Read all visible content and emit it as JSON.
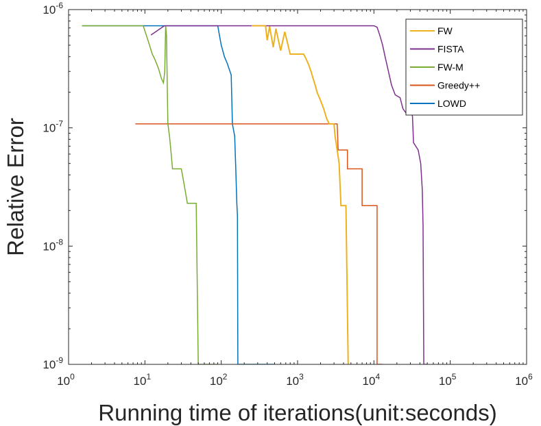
{
  "chart_data": {
    "type": "line",
    "title": "",
    "xlabel": "Running time of iterations(unit:seconds)",
    "ylabel": "Relative Error",
    "xscale": "log",
    "yscale": "log",
    "xlim": [
      1,
      1000000
    ],
    "ylim": [
      1e-09,
      1e-06
    ],
    "x_ticks": [
      {
        "base": "10",
        "exp": "0",
        "value": 1
      },
      {
        "base": "10",
        "exp": "1",
        "value": 10
      },
      {
        "base": "10",
        "exp": "2",
        "value": 100
      },
      {
        "base": "10",
        "exp": "3",
        "value": 1000
      },
      {
        "base": "10",
        "exp": "4",
        "value": 10000
      },
      {
        "base": "10",
        "exp": "5",
        "value": 100000
      },
      {
        "base": "10",
        "exp": "6",
        "value": 1000000
      }
    ],
    "y_ticks": [
      {
        "base": "10",
        "exp": "-9",
        "value": 1e-09
      },
      {
        "base": "10",
        "exp": "-8",
        "value": 1e-08
      },
      {
        "base": "10",
        "exp": "-7",
        "value": 1e-07
      },
      {
        "base": "10",
        "exp": "-6",
        "value": 1e-06
      }
    ],
    "legend_position": "top-right",
    "series": [
      {
        "name": "FW",
        "color": "#EDB120",
        "line_width": 2,
        "points": [
          [
            250,
            7.3e-07
          ],
          [
            380,
            7.3e-07
          ],
          [
            400,
            5.5e-07
          ],
          [
            430,
            7.2e-07
          ],
          [
            480,
            4.8e-07
          ],
          [
            520,
            6.9e-07
          ],
          [
            600,
            4.5e-07
          ],
          [
            680,
            6.5e-07
          ],
          [
            800,
            4.2e-07
          ],
          [
            900,
            4.2e-07
          ],
          [
            1000,
            4.2e-07
          ],
          [
            1200,
            4.2e-07
          ],
          [
            1300,
            3.8e-07
          ],
          [
            1400,
            3.4e-07
          ],
          [
            1500,
            3e-07
          ],
          [
            1600,
            2.6e-07
          ],
          [
            1700,
            2.3e-07
          ],
          [
            1800,
            2e-07
          ],
          [
            2000,
            1.7e-07
          ],
          [
            2200,
            1.45e-07
          ],
          [
            2400,
            1.2e-07
          ],
          [
            2600,
            1.08e-07
          ],
          [
            3000,
            1.08e-07
          ],
          [
            3100,
            8.5e-08
          ],
          [
            3300,
            6.5e-08
          ],
          [
            3500,
            5e-08
          ],
          [
            3700,
            2.2e-08
          ],
          [
            4000,
            2.2e-08
          ],
          [
            4300,
            2.2e-08
          ],
          [
            4600,
            1e-09
          ]
        ]
      },
      {
        "name": "FISTA",
        "color": "#7E2F8E",
        "line_width": 1.5,
        "points": [
          [
            12,
            6.1e-07
          ],
          [
            18,
            7.3e-07
          ],
          [
            80,
            7.3e-07
          ],
          [
            200,
            7.3e-07
          ],
          [
            1000,
            7.3e-07
          ],
          [
            8000,
            7.3e-07
          ],
          [
            10000,
            7.3e-07
          ],
          [
            11000,
            7.1e-07
          ],
          [
            12000,
            6e-07
          ],
          [
            13000,
            5e-07
          ],
          [
            14000,
            4e-07
          ],
          [
            15500,
            3e-07
          ],
          [
            17000,
            2.3e-07
          ],
          [
            19000,
            1.9e-07
          ],
          [
            22000,
            1.8e-07
          ],
          [
            24000,
            1.45e-07
          ],
          [
            26000,
            1.35e-07
          ],
          [
            28000,
            1.5e-07
          ],
          [
            30000,
            1.45e-07
          ],
          [
            32000,
            1.25e-07
          ],
          [
            33000,
            7.5e-08
          ],
          [
            38000,
            6.5e-08
          ],
          [
            41000,
            5e-08
          ],
          [
            43000,
            3e-08
          ],
          [
            44000,
            1.5e-08
          ],
          [
            45000,
            1e-09
          ],
          [
            50000,
            1e-09
          ]
        ]
      },
      {
        "name": "FW-M",
        "color": "#77AC30",
        "line_width": 1.5,
        "points": [
          [
            1.5,
            7.3e-07
          ],
          [
            9.5,
            7.3e-07
          ],
          [
            10.5,
            6e-07
          ],
          [
            11.5,
            5e-07
          ],
          [
            12.5,
            4.2e-07
          ],
          [
            13.5,
            3.8e-07
          ],
          [
            15,
            3.2e-07
          ],
          [
            16.5,
            2.6e-07
          ],
          [
            17.5,
            2.4e-07
          ],
          [
            18.2,
            3e-07
          ],
          [
            18.7,
            7.3e-07
          ],
          [
            19.2,
            6e-07
          ],
          [
            19.6,
            2.4e-07
          ],
          [
            20,
            1.08e-07
          ],
          [
            21,
            8.5e-08
          ],
          [
            22,
            6.2e-08
          ],
          [
            23,
            4.5e-08
          ],
          [
            27,
            4.5e-08
          ],
          [
            30,
            4.5e-08
          ],
          [
            33,
            3.2e-08
          ],
          [
            36,
            2.3e-08
          ],
          [
            47,
            2.3e-08
          ],
          [
            50,
            1e-09
          ],
          [
            90,
            1e-09
          ]
        ]
      },
      {
        "name": "Greedy++",
        "color": "#D95319",
        "line_width": 1.5,
        "points": [
          [
            7.5,
            1.08e-07
          ],
          [
            3300,
            1.08e-07
          ],
          [
            3400,
            6.5e-08
          ],
          [
            4500,
            6.5e-08
          ],
          [
            4500,
            4.5e-08
          ],
          [
            7000,
            4.5e-08
          ],
          [
            7000,
            2.2e-08
          ],
          [
            11000,
            2.2e-08
          ],
          [
            11000,
            1e-09
          ],
          [
            13000,
            1e-09
          ]
        ]
      },
      {
        "name": "LOWD",
        "color": "#0072BD",
        "line_width": 1.5,
        "points": [
          [
            1.5,
            7.3e-07
          ],
          [
            90,
            7.3e-07
          ],
          [
            95,
            6e-07
          ],
          [
            100,
            5e-07
          ],
          [
            110,
            4e-07
          ],
          [
            120,
            3.5e-07
          ],
          [
            135,
            2.8e-07
          ],
          [
            140,
            1.08e-07
          ],
          [
            150,
            8.5e-08
          ],
          [
            155,
            4.5e-08
          ],
          [
            160,
            2.3e-08
          ],
          [
            163,
            1.8e-08
          ],
          [
            165,
            1e-09
          ],
          [
            500,
            1e-09
          ]
        ]
      }
    ]
  }
}
